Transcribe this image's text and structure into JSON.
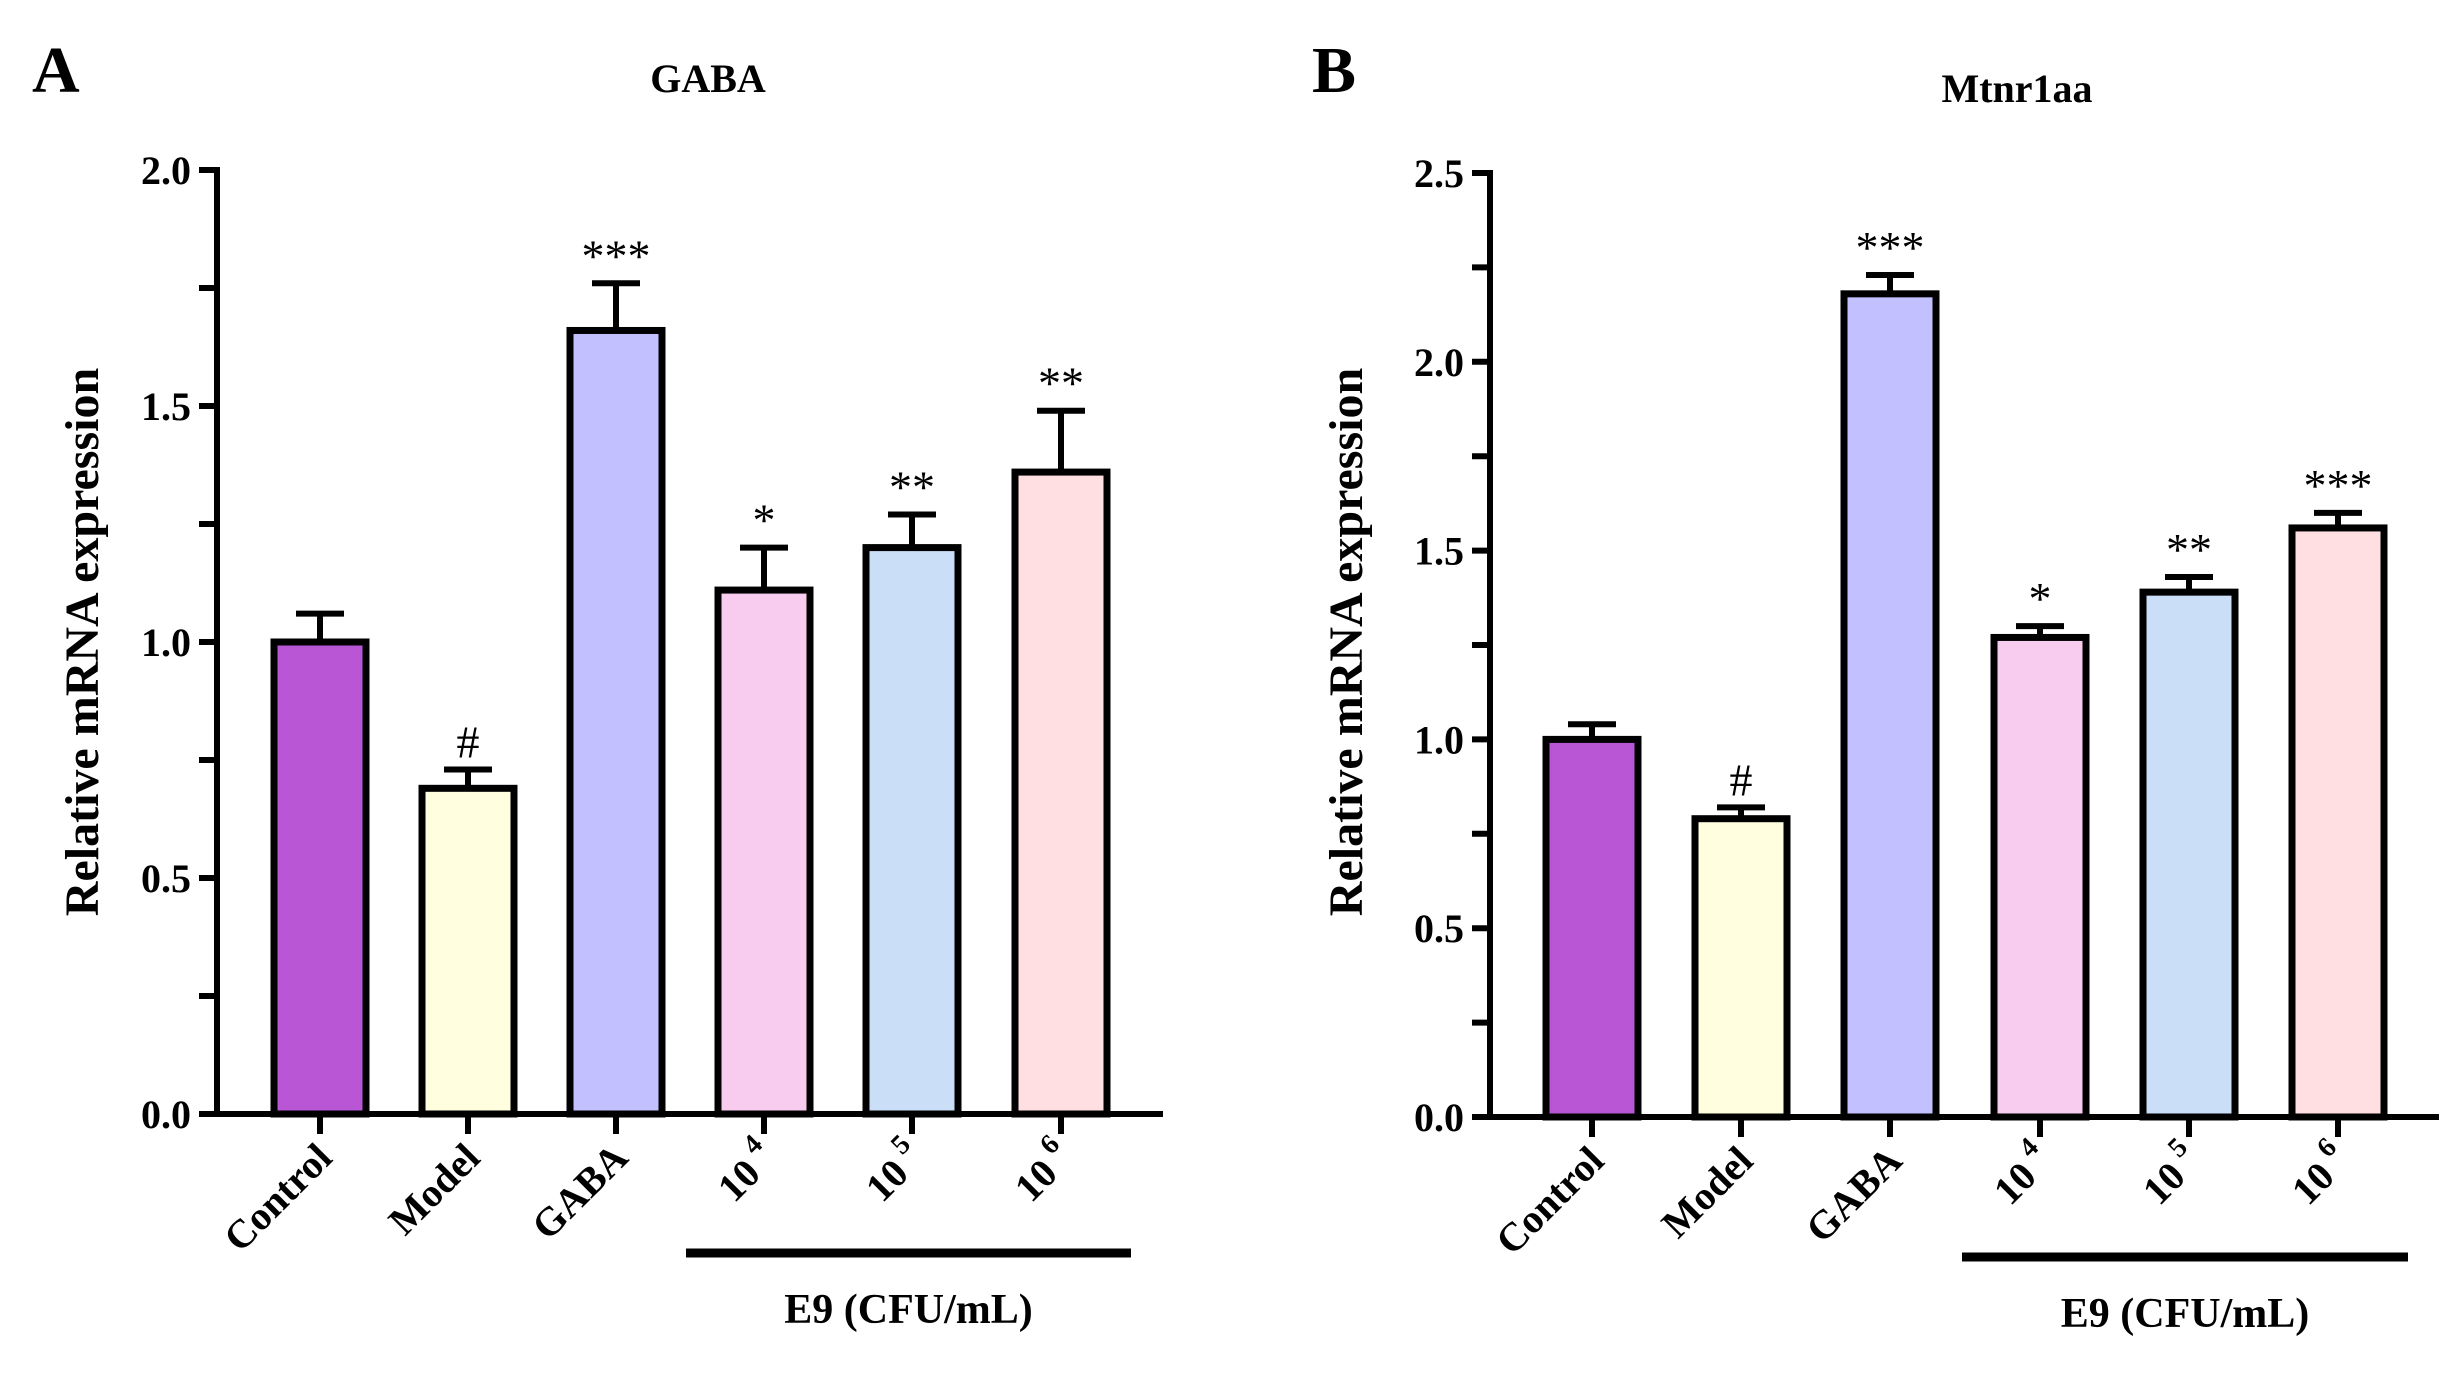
{
  "chart_data": [
    {
      "panel": "A",
      "type": "bar",
      "title": "GABA",
      "xlabel": "",
      "ylabel": "Relative mRNA expression",
      "ylim": [
        0,
        2.0
      ],
      "yticks": [
        "0.0",
        "0.5",
        "1.0",
        "1.5",
        "2.0"
      ],
      "ytick_values": [
        0,
        0.5,
        1.0,
        1.5,
        2.0
      ],
      "minor_tick_step": 0.25,
      "categories": [
        "Control",
        "Model",
        "GABA",
        "10^4",
        "10^5",
        "10^6"
      ],
      "category_labels": [
        {
          "base": "Control",
          "sup": ""
        },
        {
          "base": "Model",
          "sup": ""
        },
        {
          "base": "GABA",
          "sup": ""
        },
        {
          "base": "10",
          "sup": "4"
        },
        {
          "base": "10",
          "sup": "5"
        },
        {
          "base": "10",
          "sup": "6"
        }
      ],
      "values": [
        1.0,
        0.69,
        1.66,
        1.11,
        1.2,
        1.36
      ],
      "error_upper": [
        0.06,
        0.04,
        0.1,
        0.09,
        0.07,
        0.13
      ],
      "significance": [
        "",
        "#",
        "***",
        "*",
        "**",
        "**"
      ],
      "colors": [
        "#B856D6",
        "#FFFFE0",
        "#C2C0FF",
        "#F8CCEF",
        "#CADEF8",
        "#FFDFE2"
      ],
      "group_bracket": {
        "label": "E9 (CFU/mL)",
        "from_category": 3,
        "to_category": 5
      },
      "grid": false
    },
    {
      "panel": "B",
      "type": "bar",
      "title": "Mtnr1aa",
      "xlabel": "",
      "ylabel": "Relative mRNA expression",
      "ylim": [
        0,
        2.5
      ],
      "yticks": [
        "0.0",
        "0.5",
        "1.0",
        "1.5",
        "2.0",
        "2.5"
      ],
      "ytick_values": [
        0,
        0.5,
        1.0,
        1.5,
        2.0,
        2.5
      ],
      "minor_tick_step": 0.25,
      "categories": [
        "Control",
        "Model",
        "GABA",
        "10^4",
        "10^5",
        "10^6"
      ],
      "category_labels": [
        {
          "base": "Control",
          "sup": ""
        },
        {
          "base": "Model",
          "sup": ""
        },
        {
          "base": "GABA",
          "sup": ""
        },
        {
          "base": "10",
          "sup": "4"
        },
        {
          "base": "10",
          "sup": "5"
        },
        {
          "base": "10",
          "sup": "6"
        }
      ],
      "values": [
        1.0,
        0.79,
        2.18,
        1.27,
        1.39,
        1.56
      ],
      "error_upper": [
        0.04,
        0.03,
        0.05,
        0.03,
        0.04,
        0.04
      ],
      "significance": [
        "",
        "#",
        "***",
        "*",
        "**",
        "***"
      ],
      "colors": [
        "#B856D6",
        "#FFFFE0",
        "#C2C0FF",
        "#F8CCEF",
        "#CADEF8",
        "#FFDFE2"
      ],
      "group_bracket": {
        "label": "E9 (CFU/mL)",
        "from_category": 3,
        "to_category": 5
      },
      "grid": false
    }
  ]
}
